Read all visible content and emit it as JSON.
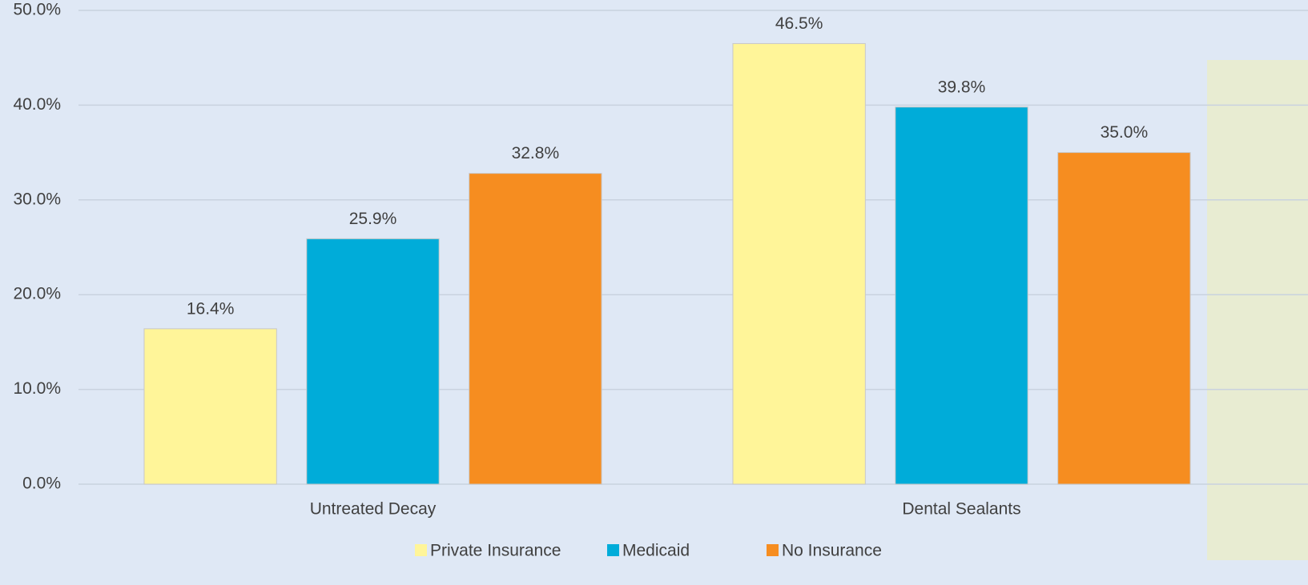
{
  "chart_data": {
    "type": "bar",
    "categories": [
      "Untreated Decay",
      "Dental Sealants"
    ],
    "series": [
      {
        "name": "Private Insurance",
        "color": "#fff599",
        "values": [
          16.4,
          46.5
        ],
        "value_labels": [
          "16.4%",
          "46.5%"
        ]
      },
      {
        "name": "Medicaid",
        "color": "#00acd9",
        "values": [
          25.9,
          39.8
        ],
        "value_labels": [
          "25.9%",
          "39.8%"
        ]
      },
      {
        "name": "No Insurance",
        "color": "#f68d20",
        "values": [
          32.8,
          35.0
        ],
        "value_labels": [
          "32.8%",
          "35.0%"
        ]
      }
    ],
    "ylim": [
      0,
      50
    ],
    "yticks": [
      {
        "value": 0,
        "label": "0.0%"
      },
      {
        "value": 10,
        "label": "10.0%"
      },
      {
        "value": 20,
        "label": "20.0%"
      },
      {
        "value": 30,
        "label": "30.0%"
      },
      {
        "value": 40,
        "label": "40.0%"
      },
      {
        "value": 50,
        "label": "50.0%"
      }
    ],
    "grid": true,
    "legend": "bottom"
  }
}
